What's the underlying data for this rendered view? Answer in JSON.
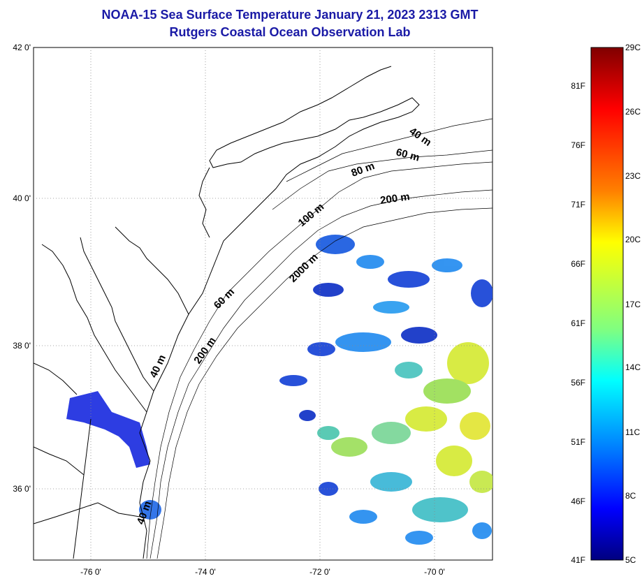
{
  "title": {
    "line1": "NOAA-15 Sea Surface Temperature January 21, 2023 2313 GMT",
    "line2": "Rutgers Coastal Ocean Observation Lab"
  },
  "map": {
    "lat_labels": [
      "42 0'",
      "40 0'",
      "38 0'",
      "36 0'"
    ],
    "lon_labels": [
      "-76 0'",
      "-74 0'",
      "-72 0'",
      "-70 0'"
    ],
    "gridlines": true,
    "isobath_labels": [
      "40 m",
      "60 m",
      "80 m",
      "200 m",
      "100 m",
      "2000 m",
      "60 m",
      "200 m",
      "40 m",
      "40 m"
    ]
  },
  "colorbar": {
    "celsius_labels": [
      "29C",
      "26C",
      "23C",
      "20C",
      "17C",
      "14C",
      "11C",
      "8C",
      "5C"
    ],
    "fahrenheit_labels": [
      "81F",
      "76F",
      "71F",
      "66F",
      "61F",
      "56F",
      "51F",
      "46F",
      "41F"
    ],
    "colors": [
      "#800000",
      "#ff0000",
      "#ff8000",
      "#ffff00",
      "#80ff80",
      "#00ffff",
      "#0080ff",
      "#0000ff",
      "#000080"
    ]
  }
}
